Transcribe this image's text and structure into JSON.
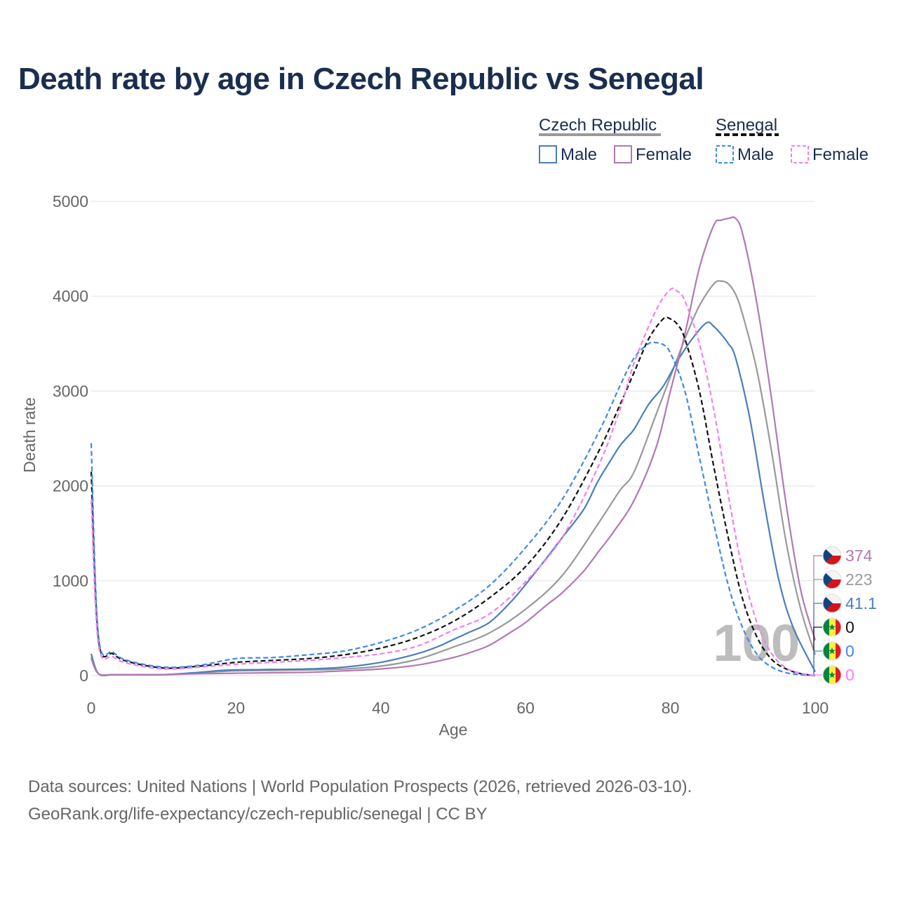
{
  "chart_data": {
    "type": "line",
    "title": "Death rate by age in Czech Republic vs Senegal",
    "xlabel": "Age",
    "ylabel": "Death rate",
    "xlim": [
      0,
      100
    ],
    "ylim": [
      0,
      5000
    ],
    "xticks": [
      0,
      20,
      40,
      60,
      80,
      100
    ],
    "yticks": [
      0,
      1000,
      2000,
      3000,
      4000,
      5000
    ],
    "grid": true,
    "current_age_label": "100",
    "legend": {
      "placement": "top-right",
      "groups": [
        {
          "name": "Czech Republic",
          "color": "#999999",
          "dashed": false,
          "items": [
            {
              "label": "Male",
              "color": "#4a7ebb"
            },
            {
              "label": "Female",
              "color": "#b377b3"
            }
          ]
        },
        {
          "name": "Senegal",
          "color": "#111111",
          "dashed": true,
          "items": [
            {
              "label": "Male",
              "color": "#3d8ae8"
            },
            {
              "label": "Female",
              "color": "#f47ef0"
            }
          ]
        }
      ]
    },
    "series": [
      {
        "name": "Czech Republic Total",
        "country": "cz",
        "color": "#999999",
        "dashed": false,
        "x": [
          0,
          1,
          3,
          5,
          10,
          15,
          20,
          25,
          30,
          35,
          40,
          45,
          50,
          55,
          60,
          65,
          70,
          73,
          75,
          78,
          80,
          82,
          84,
          86,
          87,
          88,
          89,
          90,
          92,
          94,
          96,
          98,
          100
        ],
        "y": [
          200,
          20,
          10,
          10,
          10,
          30,
          50,
          55,
          60,
          70,
          100,
          170,
          300,
          450,
          700,
          1050,
          1600,
          1950,
          2150,
          2750,
          3150,
          3550,
          3900,
          4130,
          4160,
          4130,
          4020,
          3800,
          3200,
          2350,
          1400,
          700,
          223
        ],
        "end_label": "223"
      },
      {
        "name": "Czech Republic Male",
        "country": "cz",
        "color": "#4a7ebb",
        "dashed": false,
        "x": [
          0,
          1,
          3,
          5,
          10,
          15,
          18,
          20,
          25,
          30,
          35,
          40,
          45,
          48,
          50,
          52,
          55,
          58,
          60,
          63,
          65,
          68,
          70,
          72,
          73,
          74,
          75,
          77,
          79,
          81,
          83,
          85,
          86,
          87,
          88,
          89,
          91,
          93,
          95,
          97,
          100
        ],
        "y": [
          230,
          20,
          10,
          10,
          10,
          35,
          55,
          60,
          65,
          70,
          90,
          140,
          230,
          310,
          380,
          450,
          560,
          780,
          960,
          1250,
          1450,
          1750,
          2050,
          2300,
          2420,
          2510,
          2600,
          2860,
          3050,
          3320,
          3550,
          3720,
          3680,
          3600,
          3500,
          3350,
          2700,
          1800,
          1000,
          500,
          41.1
        ],
        "end_label": "41.1"
      },
      {
        "name": "Czech Republic Female",
        "country": "cz",
        "color": "#b377b3",
        "dashed": false,
        "x": [
          0,
          1,
          3,
          5,
          10,
          15,
          20,
          25,
          30,
          35,
          40,
          45,
          50,
          53,
          55,
          58,
          60,
          63,
          65,
          68,
          70,
          72,
          75,
          78,
          80,
          82,
          84,
          86,
          87,
          88,
          89,
          90,
          92,
          94,
          96,
          98,
          100
        ],
        "y": [
          180,
          20,
          10,
          10,
          10,
          20,
          25,
          30,
          35,
          50,
          70,
          110,
          190,
          260,
          320,
          460,
          560,
          750,
          870,
          1100,
          1300,
          1500,
          1850,
          2400,
          3000,
          3600,
          4300,
          4750,
          4800,
          4820,
          4820,
          4650,
          3900,
          2900,
          1800,
          900,
          374
        ],
        "end_label": "374"
      },
      {
        "name": "Senegal Total",
        "country": "sn",
        "color": "#111111",
        "dashed": true,
        "x": [
          0,
          1,
          3,
          5,
          10,
          15,
          20,
          25,
          30,
          35,
          40,
          45,
          50,
          55,
          60,
          65,
          70,
          73,
          75,
          77,
          79,
          80,
          81,
          82,
          84,
          86,
          88,
          90,
          92,
          94,
          96,
          98,
          100
        ],
        "y": [
          2150,
          380,
          230,
          150,
          80,
          100,
          140,
          160,
          180,
          220,
          290,
          400,
          570,
          820,
          1150,
          1650,
          2350,
          2850,
          3200,
          3550,
          3760,
          3760,
          3700,
          3550,
          3000,
          2200,
          1450,
          800,
          400,
          170,
          70,
          20,
          0
        ],
        "end_label": "0"
      },
      {
        "name": "Senegal Male",
        "country": "sn",
        "color": "#3d8ae8",
        "dashed": true,
        "x": [
          0,
          1,
          3,
          5,
          10,
          15,
          20,
          25,
          30,
          35,
          40,
          45,
          50,
          55,
          60,
          65,
          70,
          73,
          75,
          77,
          78,
          79,
          80,
          82,
          84,
          86,
          88,
          90,
          92,
          94,
          96,
          98,
          100
        ],
        "y": [
          2450,
          420,
          250,
          160,
          90,
          110,
          180,
          190,
          220,
          260,
          350,
          480,
          680,
          950,
          1350,
          1850,
          2550,
          3050,
          3350,
          3500,
          3510,
          3490,
          3400,
          3000,
          2300,
          1600,
          950,
          500,
          220,
          90,
          30,
          10,
          0
        ],
        "end_label": "0"
      },
      {
        "name": "Senegal Female",
        "country": "sn",
        "color": "#f47ef0",
        "dashed": true,
        "x": [
          0,
          1,
          3,
          5,
          10,
          15,
          20,
          25,
          30,
          35,
          40,
          45,
          50,
          55,
          60,
          65,
          70,
          73,
          75,
          78,
          80,
          81,
          82,
          84,
          86,
          88,
          90,
          92,
          94,
          96,
          98,
          100
        ],
        "y": [
          1850,
          330,
          200,
          130,
          70,
          90,
          120,
          140,
          160,
          190,
          230,
          310,
          480,
          650,
          990,
          1450,
          2200,
          2800,
          3300,
          3850,
          4070,
          4050,
          3950,
          3500,
          2800,
          1900,
          1100,
          550,
          230,
          80,
          25,
          0
        ],
        "end_label": "0"
      }
    ]
  },
  "footer": {
    "line1": "Data sources: United Nations | World Population Prospects (2026, retrieved 2026-03-10).",
    "line2": "GeoRank.org/life-expectancy/czech-republic/senegal | CC BY"
  }
}
